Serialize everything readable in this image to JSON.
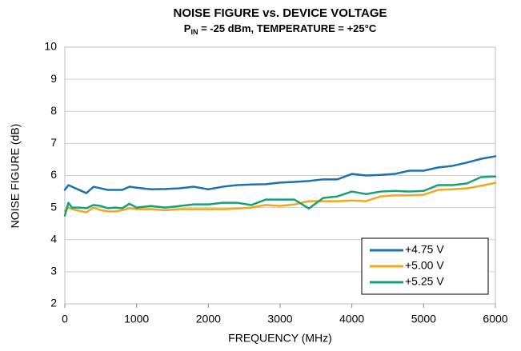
{
  "chart_data": {
    "type": "line",
    "title": "NOISE FIGURE vs. DEVICE VOLTAGE",
    "subtitle": {
      "main": "P",
      "subscript": "IN",
      "rest": " = -25 dBm, TEMPERATURE = +25°C"
    },
    "x_label": "FREQUENCY (MHz)",
    "y_label": "NOISE FIGURE (dB)",
    "x": [
      0,
      50,
      100,
      200,
      300,
      400,
      500,
      600,
      700,
      800,
      900,
      1000,
      1200,
      1400,
      1600,
      1800,
      2000,
      2200,
      2400,
      2600,
      2800,
      3000,
      3200,
      3400,
      3600,
      3800,
      4000,
      4200,
      4400,
      4600,
      4800,
      5000,
      5200,
      5400,
      5600,
      5800,
      6000
    ],
    "series": [
      {
        "name": "+4.75 V",
        "color": "#1f72b0",
        "values": [
          5.55,
          5.7,
          5.65,
          5.55,
          5.45,
          5.65,
          5.6,
          5.55,
          5.55,
          5.55,
          5.65,
          5.62,
          5.57,
          5.58,
          5.6,
          5.65,
          5.57,
          5.65,
          5.7,
          5.72,
          5.73,
          5.78,
          5.8,
          5.83,
          5.88,
          5.88,
          6.05,
          6.0,
          6.02,
          6.05,
          6.15,
          6.15,
          6.25,
          6.3,
          6.4,
          6.52,
          6.6
        ]
      },
      {
        "name": "+5.00 V",
        "color": "#f0a81c",
        "values": [
          4.9,
          5.0,
          4.95,
          4.9,
          4.85,
          5.0,
          4.92,
          4.88,
          4.88,
          4.92,
          4.98,
          4.95,
          4.95,
          4.92,
          4.95,
          4.95,
          4.95,
          4.95,
          4.97,
          5.0,
          5.08,
          5.05,
          5.1,
          5.2,
          5.2,
          5.2,
          5.22,
          5.2,
          5.35,
          5.38,
          5.38,
          5.4,
          5.55,
          5.57,
          5.6,
          5.68,
          5.77
        ]
      },
      {
        "name": "+5.25 V",
        "color": "#17a07a",
        "values": [
          4.75,
          5.15,
          5.0,
          5.0,
          4.98,
          5.08,
          5.05,
          4.98,
          5.0,
          4.98,
          5.12,
          5.0,
          5.05,
          5.0,
          5.05,
          5.1,
          5.1,
          5.15,
          5.15,
          5.08,
          5.25,
          5.25,
          5.25,
          4.97,
          5.3,
          5.35,
          5.5,
          5.42,
          5.5,
          5.52,
          5.5,
          5.52,
          5.7,
          5.7,
          5.75,
          5.95,
          5.97
        ]
      }
    ],
    "xlim": [
      0,
      6000
    ],
    "xticks": [
      0,
      1000,
      2000,
      3000,
      4000,
      5000,
      6000
    ],
    "ylim": [
      2,
      10
    ],
    "yticks": [
      2,
      3,
      4,
      5,
      6,
      7,
      8,
      9,
      10
    ],
    "grid": true,
    "legend": "lower right"
  }
}
